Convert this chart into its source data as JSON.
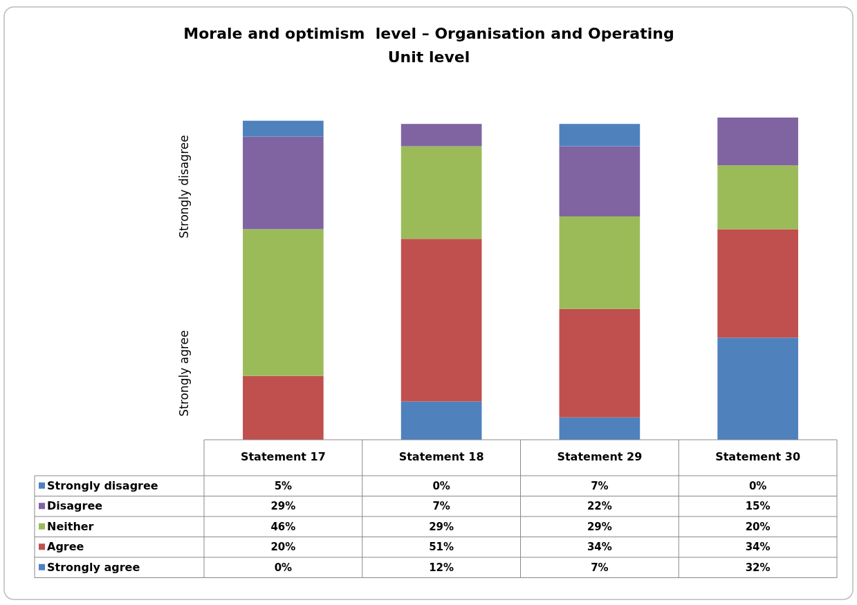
{
  "chart_data": {
    "type": "bar",
    "title": "Morale and optimism  level – Organisation and Operating Unit level",
    "stacked": true,
    "legend": "bottom left",
    "categories": [
      "Statement 17",
      "Statement 18",
      "Statement 29",
      "Statement 30"
    ],
    "series": [
      {
        "name": "Strongly agree",
        "color": "#4f81bd",
        "values": [
          0,
          12,
          7,
          32
        ],
        "value_labels": [
          "0%",
          "12%",
          "7%",
          "32%"
        ]
      },
      {
        "name": "Agree",
        "color": "#c0504d",
        "values": [
          20,
          51,
          34,
          34
        ],
        "value_labels": [
          "20%",
          "51%",
          "34%",
          "34%"
        ]
      },
      {
        "name": "Neither",
        "color": "#9bbb59",
        "values": [
          46,
          29,
          29,
          20
        ],
        "value_labels": [
          "46%",
          "29%",
          "29%",
          "20%"
        ]
      },
      {
        "name": "Disagree",
        "color": "#8064a2",
        "values": [
          29,
          7,
          22,
          15
        ],
        "value_labels": [
          "29%",
          "7%",
          "22%",
          "15%"
        ]
      },
      {
        "name": "Strongly disagree",
        "color": "#4f81bd",
        "values": [
          5,
          0,
          7,
          0
        ],
        "value_labels": [
          "5%",
          "0%",
          "7%",
          "0%"
        ]
      }
    ],
    "annotations": [
      "Strongly disagree",
      "Strongly agree"
    ]
  }
}
